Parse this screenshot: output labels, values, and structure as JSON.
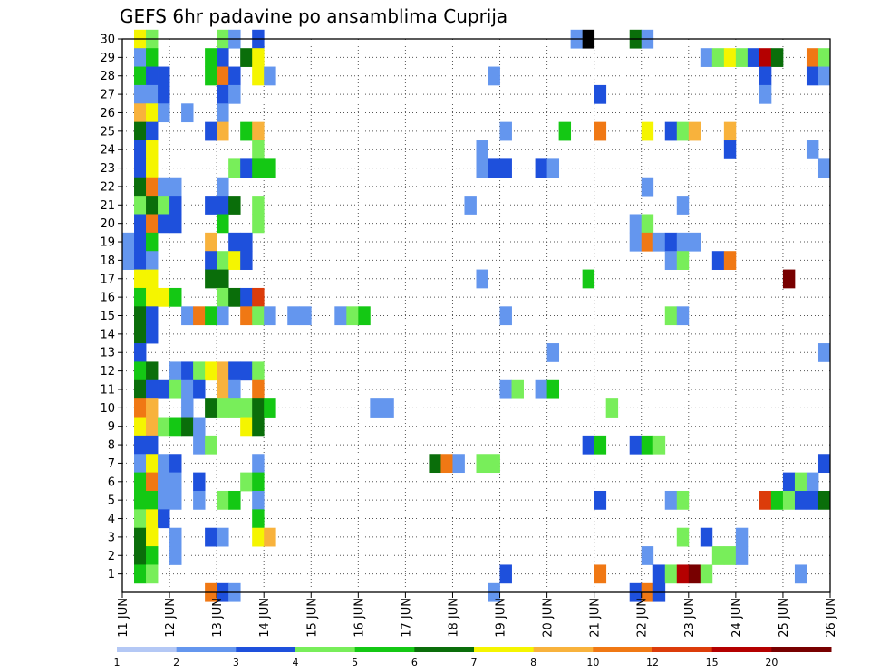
{
  "chart_data": {
    "type": "heatmap",
    "title": "GEFS 6hr padavine po ansamblima Cuprija",
    "xlabel": "",
    "ylabel": "",
    "x_ticks": [
      "11 JUN",
      "12 JUN",
      "13 JUN",
      "14 JUN",
      "15 JUN",
      "16 JUN",
      "17 JUN",
      "18 JUN",
      "19 JUN",
      "20 JUN",
      "21 JUN",
      "22 JUN",
      "23 JUN",
      "24 JUN",
      "25 JUN",
      "26 JUN"
    ],
    "xlim": [
      "11 JUN 00Z",
      "26 JUN 00Z"
    ],
    "x_step": "6hr",
    "y_ticks": [
      1,
      2,
      3,
      4,
      5,
      6,
      7,
      8,
      9,
      10,
      11,
      12,
      13,
      14,
      15,
      16,
      17,
      18,
      19,
      20,
      21,
      22,
      23,
      24,
      25,
      26,
      27,
      28,
      29,
      30
    ],
    "ylim": [
      0,
      30
    ],
    "grid": "dotted",
    "color_levels": [
      1,
      2,
      3,
      4,
      5,
      6,
      7,
      8,
      10,
      12,
      15,
      20
    ],
    "colors": [
      "#b4c8f5",
      "#6496ee",
      "#1e50dc",
      "#78ee5a",
      "#14c814",
      "#0a6e0a",
      "#f5f500",
      "#f8b23c",
      "#f07814",
      "#dc3c0a",
      "#b40000",
      "#780000"
    ],
    "cells": [
      [
        30,
        1,
        6
      ],
      [
        30,
        2,
        3
      ],
      [
        30,
        8,
        3
      ],
      [
        30,
        9,
        1
      ],
      [
        30,
        11,
        2
      ],
      [
        30,
        38,
        1
      ],
      [
        30,
        39,
        12
      ],
      [
        30,
        43,
        5
      ],
      [
        30,
        44,
        1
      ],
      [
        29,
        1,
        1
      ],
      [
        29,
        2,
        4
      ],
      [
        29,
        7,
        4
      ],
      [
        29,
        8,
        2
      ],
      [
        29,
        10,
        5
      ],
      [
        29,
        11,
        6
      ],
      [
        29,
        49,
        1
      ],
      [
        29,
        50,
        3
      ],
      [
        29,
        51,
        6
      ],
      [
        29,
        52,
        3
      ],
      [
        29,
        53,
        2
      ],
      [
        29,
        54,
        10
      ],
      [
        29,
        55,
        5
      ],
      [
        29,
        58,
        8
      ],
      [
        29,
        59,
        3
      ],
      [
        28,
        1,
        4
      ],
      [
        28,
        2,
        2
      ],
      [
        28,
        3,
        2
      ],
      [
        28,
        7,
        4
      ],
      [
        28,
        8,
        8
      ],
      [
        28,
        9,
        2
      ],
      [
        28,
        11,
        6
      ],
      [
        28,
        12,
        1
      ],
      [
        28,
        31,
        1
      ],
      [
        28,
        54,
        2
      ],
      [
        28,
        58,
        2
      ],
      [
        28,
        59,
        1
      ],
      [
        27,
        1,
        1
      ],
      [
        27,
        2,
        1
      ],
      [
        27,
        3,
        2
      ],
      [
        27,
        8,
        2
      ],
      [
        27,
        9,
        1
      ],
      [
        27,
        40,
        2
      ],
      [
        27,
        54,
        1
      ],
      [
        26,
        1,
        7
      ],
      [
        26,
        2,
        6
      ],
      [
        26,
        3,
        1
      ],
      [
        26,
        5,
        1
      ],
      [
        26,
        8,
        1
      ],
      [
        25,
        1,
        5
      ],
      [
        25,
        2,
        2
      ],
      [
        25,
        7,
        2
      ],
      [
        25,
        8,
        7
      ],
      [
        25,
        10,
        4
      ],
      [
        25,
        11,
        7
      ],
      [
        25,
        32,
        1
      ],
      [
        25,
        37,
        4
      ],
      [
        25,
        40,
        8
      ],
      [
        25,
        44,
        6
      ],
      [
        25,
        46,
        2
      ],
      [
        25,
        47,
        3
      ],
      [
        25,
        48,
        7
      ],
      [
        25,
        51,
        7
      ],
      [
        24,
        1,
        2
      ],
      [
        24,
        2,
        6
      ],
      [
        24,
        11,
        3
      ],
      [
        24,
        30,
        1
      ],
      [
        24,
        51,
        2
      ],
      [
        24,
        58,
        1
      ],
      [
        23,
        1,
        2
      ],
      [
        23,
        2,
        6
      ],
      [
        23,
        9,
        3
      ],
      [
        23,
        10,
        2
      ],
      [
        23,
        11,
        4
      ],
      [
        23,
        12,
        4
      ],
      [
        23,
        30,
        1
      ],
      [
        23,
        31,
        2
      ],
      [
        23,
        32,
        2
      ],
      [
        23,
        35,
        2
      ],
      [
        23,
        36,
        1
      ],
      [
        23,
        59,
        1
      ],
      [
        22,
        1,
        5
      ],
      [
        22,
        2,
        8
      ],
      [
        22,
        3,
        1
      ],
      [
        22,
        4,
        1
      ],
      [
        22,
        8,
        1
      ],
      [
        22,
        44,
        1
      ],
      [
        21,
        1,
        3
      ],
      [
        21,
        2,
        5
      ],
      [
        21,
        3,
        3
      ],
      [
        21,
        4,
        2
      ],
      [
        21,
        7,
        2
      ],
      [
        21,
        8,
        2
      ],
      [
        21,
        9,
        5
      ],
      [
        21,
        11,
        3
      ],
      [
        21,
        29,
        1
      ],
      [
        21,
        47,
        1
      ],
      [
        20,
        1,
        2
      ],
      [
        20,
        2,
        8
      ],
      [
        20,
        3,
        2
      ],
      [
        20,
        4,
        2
      ],
      [
        20,
        8,
        4
      ],
      [
        20,
        11,
        3
      ],
      [
        20,
        43,
        1
      ],
      [
        20,
        44,
        3
      ],
      [
        19,
        0,
        1
      ],
      [
        19,
        1,
        2
      ],
      [
        19,
        2,
        4
      ],
      [
        19,
        7,
        7
      ],
      [
        19,
        9,
        2
      ],
      [
        19,
        10,
        2
      ],
      [
        19,
        43,
        1
      ],
      [
        19,
        44,
        8
      ],
      [
        19,
        45,
        1
      ],
      [
        19,
        46,
        2
      ],
      [
        19,
        47,
        1
      ],
      [
        19,
        48,
        1
      ],
      [
        18,
        0,
        1
      ],
      [
        18,
        1,
        2
      ],
      [
        18,
        2,
        1
      ],
      [
        18,
        7,
        2
      ],
      [
        18,
        8,
        3
      ],
      [
        18,
        9,
        6
      ],
      [
        18,
        10,
        2
      ],
      [
        18,
        46,
        1
      ],
      [
        18,
        47,
        3
      ],
      [
        18,
        50,
        2
      ],
      [
        18,
        51,
        8
      ],
      [
        17,
        1,
        6
      ],
      [
        17,
        2,
        6
      ],
      [
        17,
        7,
        5
      ],
      [
        17,
        8,
        5
      ],
      [
        17,
        30,
        1
      ],
      [
        17,
        39,
        4
      ],
      [
        17,
        56,
        11
      ],
      [
        16,
        1,
        4
      ],
      [
        16,
        2,
        6
      ],
      [
        16,
        3,
        6
      ],
      [
        16,
        4,
        4
      ],
      [
        16,
        8,
        3
      ],
      [
        16,
        9,
        5
      ],
      [
        16,
        10,
        2
      ],
      [
        16,
        11,
        9
      ],
      [
        15,
        1,
        5
      ],
      [
        15,
        2,
        2
      ],
      [
        15,
        5,
        1
      ],
      [
        15,
        6,
        8
      ],
      [
        15,
        7,
        4
      ],
      [
        15,
        8,
        1
      ],
      [
        15,
        10,
        8
      ],
      [
        15,
        11,
        3
      ],
      [
        15,
        12,
        1
      ],
      [
        15,
        14,
        1
      ],
      [
        15,
        15,
        1
      ],
      [
        15,
        18,
        1
      ],
      [
        15,
        19,
        3
      ],
      [
        15,
        20,
        4
      ],
      [
        15,
        32,
        1
      ],
      [
        15,
        46,
        3
      ],
      [
        15,
        47,
        1
      ],
      [
        14,
        1,
        5
      ],
      [
        14,
        2,
        2
      ],
      [
        13,
        1,
        2
      ],
      [
        13,
        36,
        1
      ],
      [
        13,
        59,
        1
      ],
      [
        12,
        1,
        4
      ],
      [
        12,
        2,
        5
      ],
      [
        12,
        4,
        1
      ],
      [
        12,
        5,
        2
      ],
      [
        12,
        6,
        3
      ],
      [
        12,
        7,
        6
      ],
      [
        12,
        8,
        7
      ],
      [
        12,
        9,
        2
      ],
      [
        12,
        10,
        2
      ],
      [
        12,
        11,
        3
      ],
      [
        11,
        1,
        5
      ],
      [
        11,
        2,
        2
      ],
      [
        11,
        3,
        2
      ],
      [
        11,
        4,
        3
      ],
      [
        11,
        5,
        1
      ],
      [
        11,
        6,
        2
      ],
      [
        11,
        8,
        7
      ],
      [
        11,
        9,
        1
      ],
      [
        11,
        11,
        8
      ],
      [
        11,
        32,
        1
      ],
      [
        11,
        33,
        3
      ],
      [
        11,
        35,
        1
      ],
      [
        11,
        36,
        4
      ],
      [
        10,
        1,
        8
      ],
      [
        10,
        2,
        7
      ],
      [
        10,
        5,
        1
      ],
      [
        10,
        7,
        5
      ],
      [
        10,
        8,
        3
      ],
      [
        10,
        9,
        3
      ],
      [
        10,
        10,
        3
      ],
      [
        10,
        11,
        5
      ],
      [
        10,
        12,
        4
      ],
      [
        10,
        21,
        1
      ],
      [
        10,
        22,
        1
      ],
      [
        10,
        41,
        3
      ],
      [
        9,
        1,
        6
      ],
      [
        9,
        2,
        7
      ],
      [
        9,
        3,
        3
      ],
      [
        9,
        4,
        4
      ],
      [
        9,
        5,
        5
      ],
      [
        9,
        6,
        1
      ],
      [
        9,
        10,
        6
      ],
      [
        9,
        11,
        5
      ],
      [
        8,
        1,
        2
      ],
      [
        8,
        2,
        2
      ],
      [
        8,
        6,
        1
      ],
      [
        8,
        7,
        3
      ],
      [
        8,
        39,
        2
      ],
      [
        8,
        40,
        4
      ],
      [
        8,
        43,
        2
      ],
      [
        8,
        44,
        4
      ],
      [
        8,
        45,
        3
      ],
      [
        7,
        1,
        1
      ],
      [
        7,
        2,
        6
      ],
      [
        7,
        3,
        1
      ],
      [
        7,
        4,
        2
      ],
      [
        7,
        11,
        1
      ],
      [
        7,
        26,
        5
      ],
      [
        7,
        27,
        8
      ],
      [
        7,
        28,
        1
      ],
      [
        7,
        30,
        3
      ],
      [
        7,
        31,
        3
      ],
      [
        7,
        59,
        2
      ],
      [
        6,
        1,
        4
      ],
      [
        6,
        2,
        8
      ],
      [
        6,
        3,
        1
      ],
      [
        6,
        4,
        1
      ],
      [
        6,
        6,
        2
      ],
      [
        6,
        10,
        3
      ],
      [
        6,
        11,
        4
      ],
      [
        6,
        56,
        2
      ],
      [
        6,
        57,
        3
      ],
      [
        6,
        58,
        1
      ],
      [
        5,
        1,
        4
      ],
      [
        5,
        2,
        4
      ],
      [
        5,
        3,
        1
      ],
      [
        5,
        4,
        1
      ],
      [
        5,
        6,
        1
      ],
      [
        5,
        8,
        3
      ],
      [
        5,
        9,
        4
      ],
      [
        5,
        11,
        1
      ],
      [
        5,
        40,
        2
      ],
      [
        5,
        46,
        1
      ],
      [
        5,
        47,
        3
      ],
      [
        5,
        54,
        9
      ],
      [
        5,
        55,
        4
      ],
      [
        5,
        56,
        3
      ],
      [
        5,
        57,
        2
      ],
      [
        5,
        58,
        2
      ],
      [
        5,
        59,
        5
      ],
      [
        4,
        1,
        3
      ],
      [
        4,
        2,
        6
      ],
      [
        4,
        3,
        2
      ],
      [
        4,
        11,
        4
      ],
      [
        3,
        1,
        5
      ],
      [
        3,
        2,
        6
      ],
      [
        3,
        4,
        1
      ],
      [
        3,
        7,
        2
      ],
      [
        3,
        8,
        1
      ],
      [
        3,
        11,
        6
      ],
      [
        3,
        12,
        7
      ],
      [
        3,
        47,
        3
      ],
      [
        3,
        49,
        2
      ],
      [
        3,
        52,
        1
      ],
      [
        2,
        1,
        5
      ],
      [
        2,
        2,
        4
      ],
      [
        2,
        4,
        1
      ],
      [
        2,
        44,
        1
      ],
      [
        2,
        50,
        3
      ],
      [
        2,
        51,
        3
      ],
      [
        2,
        52,
        1
      ],
      [
        1,
        1,
        4
      ],
      [
        1,
        2,
        3
      ],
      [
        1,
        32,
        2
      ],
      [
        1,
        40,
        8
      ],
      [
        1,
        45,
        2
      ],
      [
        1,
        46,
        3
      ],
      [
        1,
        47,
        10
      ],
      [
        1,
        48,
        11
      ],
      [
        1,
        49,
        3
      ],
      [
        1,
        57,
        1
      ],
      [
        0,
        7,
        8
      ],
      [
        0,
        8,
        2
      ],
      [
        0,
        9,
        1
      ],
      [
        0,
        31,
        1
      ],
      [
        0,
        43,
        2
      ],
      [
        0,
        44,
        8
      ],
      [
        0,
        45,
        2
      ]
    ]
  }
}
